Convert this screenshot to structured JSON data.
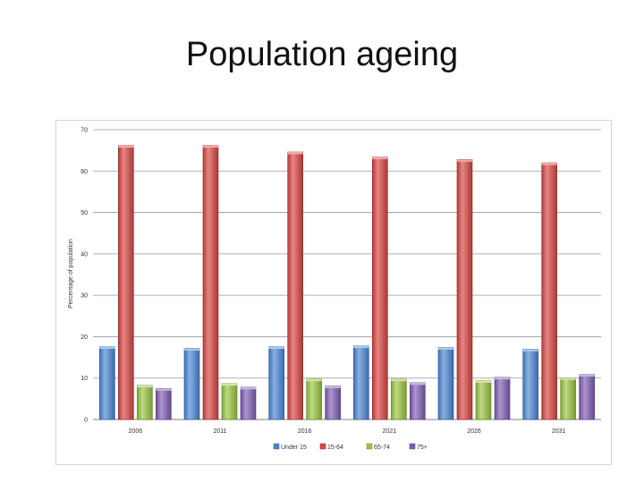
{
  "slide": {
    "title": "Population ageing"
  },
  "chart_data": {
    "type": "bar",
    "title": "",
    "xlabel": "",
    "ylabel": "Percentage of population",
    "ylim": [
      0,
      70
    ],
    "yticks": [
      "0",
      "10",
      "20",
      "30",
      "40",
      "50",
      "60",
      "70"
    ],
    "categories": [
      "2006",
      "2011",
      "2016",
      "2021",
      "2026",
      "2031"
    ],
    "series": [
      {
        "name": "Under 15",
        "color": "#4a86d4",
        "values": [
          17.6,
          17.2,
          17.6,
          17.8,
          17.4,
          17.0
        ]
      },
      {
        "name": "15-64",
        "color": "#d9433f",
        "values": [
          66.2,
          66.2,
          64.6,
          63.4,
          62.8,
          62.0
        ]
      },
      {
        "name": "65-74",
        "color": "#9ac43f",
        "values": [
          8.3,
          8.7,
          9.8,
          9.8,
          9.4,
          10.1
        ]
      },
      {
        "name": "75+",
        "color": "#7f5cb5",
        "values": [
          7.5,
          7.8,
          8.1,
          8.9,
          10.2,
          10.9
        ]
      }
    ],
    "grid": true,
    "legend": "bottom"
  }
}
